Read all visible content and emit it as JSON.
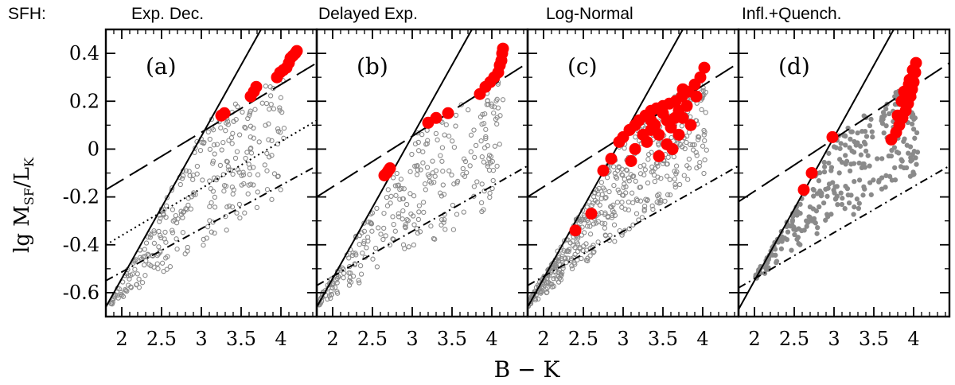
{
  "figure": {
    "ylabel_main": "lg M",
    "ylabel_sub1": "SF",
    "ylabel_slash": "/L",
    "ylabel_sub2": "K",
    "xlabel": "B − K",
    "sfh_prefix": "SFH:"
  },
  "colors": {
    "sim_point": "#8a8a8a",
    "highlight": "#ff0000",
    "line": "#000000",
    "frame": "#000000"
  },
  "chart_data": [
    {
      "type": "scatter",
      "panel": "(a)",
      "title": "Exp. Dec.",
      "xlim": [
        1.8,
        4.45
      ],
      "ylim": [
        -0.7,
        0.5
      ],
      "xticks": [
        "2",
        "2.5",
        "3",
        "3.5",
        "4"
      ],
      "yticks": [
        "0.4",
        "0.2",
        "0",
        "-0.2",
        "-0.4",
        "-0.6"
      ],
      "xtick_values": [
        2,
        2.5,
        3,
        3.5,
        4
      ],
      "ytick_values": [
        0.4,
        0.2,
        0,
        -0.2,
        -0.4,
        -0.6
      ],
      "lines": {
        "solid": [
          [
            1.8,
            -0.66
          ],
          [
            3.75,
            0.5
          ]
        ],
        "dashed": [
          [
            1.8,
            -0.17
          ],
          [
            4.45,
            0.36
          ]
        ],
        "dashdot": [
          [
            1.8,
            -0.55
          ],
          [
            4.45,
            -0.07
          ]
        ],
        "dotted": [
          [
            1.8,
            -0.4
          ],
          [
            4.45,
            0.12
          ]
        ]
      },
      "grey_band": {
        "x0": 1.85,
        "x1": 4.05,
        "lower": [
          -0.66,
          -0.19
        ],
        "upper_break": [
          3.1,
          0.13
        ],
        "upper_end": [
          4.0,
          0.3
        ]
      },
      "red_points": [
        [
          3.25,
          0.14
        ],
        [
          3.29,
          0.15
        ],
        [
          3.62,
          0.22
        ],
        [
          3.66,
          0.24
        ],
        [
          3.69,
          0.26
        ],
        [
          3.95,
          0.3
        ],
        [
          3.99,
          0.32
        ],
        [
          4.03,
          0.33
        ],
        [
          4.07,
          0.34
        ],
        [
          4.1,
          0.36
        ],
        [
          4.12,
          0.38
        ],
        [
          4.15,
          0.39
        ],
        [
          4.18,
          0.4
        ],
        [
          4.2,
          0.41
        ]
      ]
    },
    {
      "type": "scatter",
      "panel": "(b)",
      "title": "Delayed Exp.",
      "xlim": [
        1.8,
        4.45
      ],
      "ylim": [
        -0.7,
        0.5
      ],
      "xticks": [
        "2",
        "2.5",
        "3",
        "3.5",
        "4"
      ],
      "yticks": [],
      "xtick_values": [
        2,
        2.5,
        3,
        3.5,
        4
      ],
      "ytick_values": [
        0.4,
        0.2,
        0,
        -0.2,
        -0.4,
        -0.6
      ],
      "lines": {
        "solid": [
          [
            1.8,
            -0.66
          ],
          [
            3.75,
            0.5
          ]
        ],
        "dashed": [
          [
            1.8,
            -0.2
          ],
          [
            4.45,
            0.36
          ]
        ],
        "dashdot": [
          [
            1.8,
            -0.57
          ],
          [
            4.45,
            -0.07
          ]
        ]
      },
      "grey_band": {
        "x0": 1.8,
        "x1": 4.15,
        "lower": [
          -0.66,
          -0.22
        ],
        "upper_break": [
          3.1,
          0.1
        ],
        "upper_end": [
          4.1,
          0.3
        ]
      },
      "red_points": [
        [
          2.65,
          -0.11
        ],
        [
          2.68,
          -0.1
        ],
        [
          2.7,
          -0.09
        ],
        [
          2.72,
          -0.08
        ],
        [
          3.2,
          0.11
        ],
        [
          3.3,
          0.13
        ],
        [
          3.45,
          0.15
        ],
        [
          3.85,
          0.23
        ],
        [
          3.92,
          0.26
        ],
        [
          3.98,
          0.28
        ],
        [
          4.03,
          0.3
        ],
        [
          4.08,
          0.32
        ],
        [
          4.1,
          0.35
        ],
        [
          4.12,
          0.37
        ],
        [
          4.13,
          0.4
        ],
        [
          4.14,
          0.42
        ]
      ]
    },
    {
      "type": "scatter",
      "panel": "(c)",
      "title": "Log-Normal",
      "xlim": [
        1.8,
        4.45
      ],
      "ylim": [
        -0.7,
        0.5
      ],
      "xticks": [
        "2",
        "2.5",
        "3",
        "3.5",
        "4"
      ],
      "yticks": [],
      "xtick_values": [
        2,
        2.5,
        3,
        3.5,
        4
      ],
      "ytick_values": [
        0.4,
        0.2,
        0,
        -0.2,
        -0.4,
        -0.6
      ],
      "lines": {
        "solid": [
          [
            1.8,
            -0.66
          ],
          [
            3.75,
            0.5
          ]
        ],
        "dashed": [
          [
            1.8,
            -0.2
          ],
          [
            4.45,
            0.36
          ]
        ],
        "dashdot": [
          [
            1.8,
            -0.57
          ],
          [
            4.45,
            -0.07
          ]
        ]
      },
      "grey_band": {
        "x0": 1.8,
        "x1": 4.05,
        "lower": [
          -0.66,
          -0.1
        ],
        "upper_break": [
          3.1,
          0.1
        ],
        "upper_end": [
          4.0,
          0.3
        ]
      },
      "red_points": [
        [
          2.4,
          -0.34
        ],
        [
          2.6,
          -0.27
        ],
        [
          2.75,
          -0.09
        ],
        [
          2.85,
          -0.04
        ],
        [
          2.95,
          0.03
        ],
        [
          3.0,
          0.05
        ],
        [
          3.08,
          0.08
        ],
        [
          3.15,
          0.1
        ],
        [
          3.2,
          0.12
        ],
        [
          3.28,
          0.14
        ],
        [
          3.35,
          0.16
        ],
        [
          3.42,
          0.17
        ],
        [
          3.5,
          0.18
        ],
        [
          3.58,
          0.19
        ],
        [
          3.66,
          0.2
        ],
        [
          3.74,
          0.22
        ],
        [
          3.82,
          0.24
        ],
        [
          3.9,
          0.27
        ],
        [
          3.97,
          0.3
        ],
        [
          4.02,
          0.34
        ],
        [
          3.1,
          -0.05
        ],
        [
          3.3,
          0.03
        ],
        [
          3.45,
          0.06
        ],
        [
          3.6,
          0.09
        ],
        [
          3.75,
          0.13
        ],
        [
          3.55,
          0.02
        ],
        [
          3.7,
          0.06
        ],
        [
          3.85,
          0.1
        ],
        [
          3.45,
          -0.03
        ],
        [
          3.62,
          0.0
        ],
        [
          3.25,
          0.06
        ],
        [
          3.4,
          0.1
        ],
        [
          3.55,
          0.12
        ],
        [
          3.7,
          0.16
        ],
        [
          3.15,
          0.0
        ],
        [
          3.35,
          0.08
        ],
        [
          3.65,
          0.13
        ],
        [
          3.8,
          0.18
        ],
        [
          3.92,
          0.22
        ],
        [
          3.5,
          0.15
        ],
        [
          3.35,
          0.12
        ],
        [
          3.75,
          0.25
        ]
      ]
    },
    {
      "type": "scatter",
      "panel": "(d)",
      "title": "Infl.+Quench.",
      "xlim": [
        1.8,
        4.45
      ],
      "ylim": [
        -0.7,
        0.5
      ],
      "xticks": [
        "2",
        "2.5",
        "3",
        "3.5",
        "4"
      ],
      "yticks": [],
      "xtick_values": [
        2,
        2.5,
        3,
        3.5,
        4
      ],
      "ytick_values": [
        0.4,
        0.2,
        0,
        -0.2,
        -0.4,
        -0.6
      ],
      "lines": {
        "solid": [
          [
            1.8,
            -0.67
          ],
          [
            3.75,
            0.5
          ]
        ],
        "dashed": [
          [
            1.8,
            -0.22
          ],
          [
            4.45,
            0.36
          ]
        ],
        "dashdot": [
          [
            1.8,
            -0.58
          ],
          [
            4.45,
            -0.07
          ]
        ]
      },
      "grey_band": {
        "x0": 2.0,
        "x1": 4.05,
        "lower": [
          -0.55,
          -0.1
        ],
        "upper_break": [
          3.1,
          0.08
        ],
        "upper_end": [
          4.0,
          0.3
        ]
      },
      "red_points": [
        [
          2.62,
          -0.17
        ],
        [
          2.72,
          -0.1
        ],
        [
          2.98,
          0.05
        ],
        [
          3.72,
          0.04
        ],
        [
          3.78,
          0.07
        ],
        [
          3.82,
          0.1
        ],
        [
          3.86,
          0.13
        ],
        [
          3.9,
          0.16
        ],
        [
          3.93,
          0.19
        ],
        [
          3.96,
          0.22
        ],
        [
          3.98,
          0.25
        ],
        [
          4.0,
          0.28
        ],
        [
          4.02,
          0.32
        ],
        [
          4.03,
          0.36
        ],
        [
          3.88,
          0.24
        ],
        [
          3.94,
          0.27
        ],
        [
          3.8,
          0.14
        ],
        [
          3.85,
          0.2
        ],
        [
          3.9,
          0.24
        ],
        [
          3.95,
          0.29
        ],
        [
          3.99,
          0.33
        ]
      ]
    }
  ]
}
